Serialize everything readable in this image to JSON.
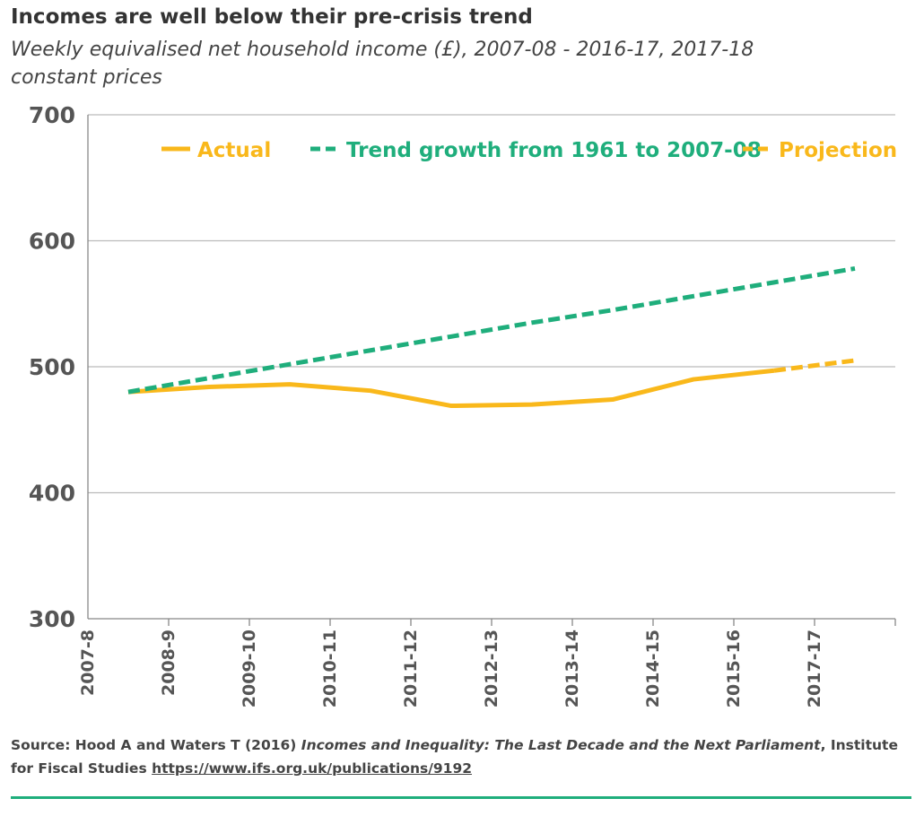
{
  "chart_data": {
    "type": "line",
    "title": "Incomes are well below their pre-crisis trend",
    "subtitle": "Weekly equivalised net household income (£), 2007-08 - 2016-17, 2017-18 constant prices",
    "categories": [
      "2007-8",
      "2008-9",
      "2009-10",
      "2010-11",
      "2011-12",
      "2012-13",
      "2013-14",
      "2014-15",
      "2015-16",
      "2017-17"
    ],
    "series": [
      {
        "name": "Actual",
        "color": "#f9b81b",
        "dash": false,
        "values": [
          480,
          484,
          486,
          481,
          469,
          470,
          474,
          490,
          497,
          null
        ]
      },
      {
        "name": "Trend growth from 1961 to 2007-08",
        "color": "#1fae7c",
        "dash": true,
        "values": [
          480,
          491,
          502,
          513,
          524,
          535,
          545,
          556,
          567,
          578
        ]
      },
      {
        "name": "Projection",
        "color": "#f9b81b",
        "dash": true,
        "values": [
          null,
          null,
          null,
          null,
          null,
          null,
          null,
          null,
          497,
          505
        ]
      }
    ],
    "ylim": [
      300,
      700
    ],
    "yticks": [
      300,
      400,
      500,
      600,
      700
    ],
    "grid": true
  },
  "source": {
    "prefix": "Source: Hood A and Waters T (2016) ",
    "title": "Incomes and Inequality: The Last Decade and the Next Parliament",
    "suffix": ", Institute for Fiscal Studies ",
    "url": "https://www.ifs.org.uk/publications/9192"
  }
}
